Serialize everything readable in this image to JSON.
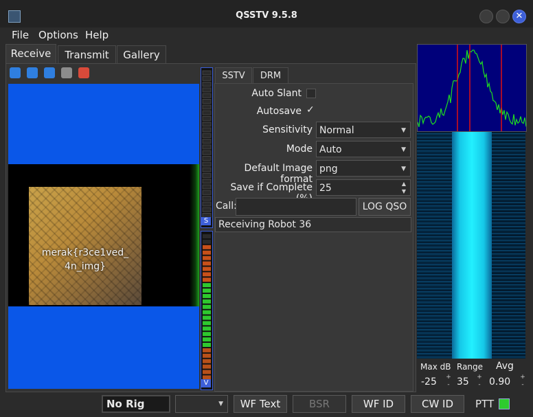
{
  "window": {
    "title": "QSSTV 9.5.8"
  },
  "menu": [
    "File",
    "Options",
    "Help"
  ],
  "tabs": [
    "Receive",
    "Transmit",
    "Gallery"
  ],
  "subtabs": [
    "SSTV",
    "DRM"
  ],
  "toolbar_icons": [
    "start-icon",
    "stop-icon",
    "reset-icon",
    "save-icon",
    "erase-icon"
  ],
  "image": {
    "caption_line1": "merak{r3ce1ved_",
    "caption_line2": "4n_img}"
  },
  "meters": {
    "sync_label": "S",
    "volume_label": "V"
  },
  "settings": {
    "auto_slant_label": "Auto Slant",
    "autosave_label": "Autosave",
    "autosave_check": "✓",
    "sensitivity_label": "Sensitivity",
    "sensitivity_value": "Normal",
    "mode_label": "Mode",
    "mode_value": "Auto",
    "format_label": "Default Image format",
    "format_value": "png",
    "save_label": "Save if Complete (%)",
    "save_value": "25",
    "call_label": "Call:",
    "call_value": "",
    "log_label": "LOG QSO",
    "status": "Receiving Robot 36"
  },
  "spectrum_controls": {
    "maxdb_label": "Max dB",
    "maxdb_value": "-25",
    "range_label": "Range",
    "range_value": "35",
    "avg_label": "Avg",
    "avg_value": "0.90"
  },
  "bottom": {
    "rig": "No Rig",
    "rig_select": "",
    "wf_text": "WF Text",
    "bsr": "BSR",
    "wf_id": "WF ID",
    "cw_id": "CW ID",
    "ptt": "PTT"
  },
  "colors": {
    "accent": "#3d5fd8",
    "image_blue": "#0a57e8",
    "ptt_led": "#2ecc2e"
  }
}
